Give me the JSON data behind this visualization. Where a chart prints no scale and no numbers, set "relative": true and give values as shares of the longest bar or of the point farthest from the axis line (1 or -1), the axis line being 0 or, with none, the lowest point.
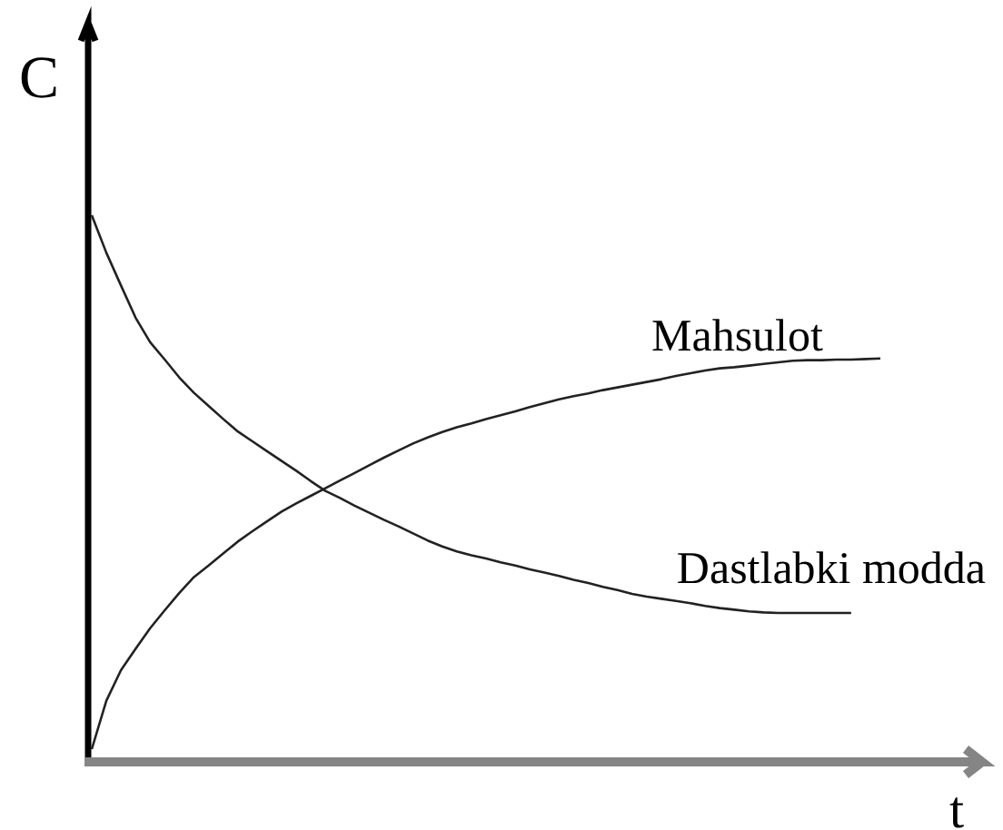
{
  "chart_data": {
    "type": "line",
    "xlabel": "t",
    "ylabel": "C",
    "relative": true,
    "categories": [
      null,
      null,
      null,
      null,
      null,
      null,
      null,
      null,
      null,
      null,
      null,
      null,
      null,
      null,
      null,
      null,
      null,
      null,
      null,
      null,
      null,
      null,
      null,
      null,
      null,
      null,
      null,
      null,
      null,
      null,
      null,
      null,
      null,
      null,
      null,
      null,
      null,
      null,
      null,
      null,
      null,
      null,
      null,
      null,
      null,
      null,
      null,
      null,
      null,
      null,
      null,
      null,
      null,
      null,
      null
    ],
    "series": [
      {
        "name": "Dastlabki modda",
        "color": "#222222",
        "values": [
          1.0,
          0.931,
          0.871,
          0.812,
          0.767,
          0.735,
          0.702,
          0.674,
          0.65,
          0.626,
          0.603,
          0.585,
          0.567,
          0.549,
          0.531,
          0.512,
          0.494,
          0.481,
          0.467,
          0.454,
          0.441,
          0.429,
          0.416,
          0.403,
          0.392,
          0.383,
          0.376,
          0.37,
          0.363,
          0.357,
          0.35,
          0.344,
          0.338,
          0.331,
          0.325,
          0.318,
          0.312,
          0.305,
          0.3,
          0.296,
          0.292,
          0.288,
          0.283,
          0.279,
          0.276,
          0.273,
          0.271,
          0.27,
          0.27,
          0.27,
          0.27,
          0.27,
          0.27,
          null,
          null
        ]
      },
      {
        "name": "Mahsulot",
        "color": "#222222",
        "values": [
          0.02,
          0.109,
          0.165,
          0.204,
          0.242,
          0.275,
          0.307,
          0.336,
          0.357,
          0.379,
          0.401,
          0.42,
          0.438,
          0.456,
          0.471,
          0.485,
          0.499,
          0.513,
          0.527,
          0.541,
          0.555,
          0.568,
          0.581,
          0.592,
          0.602,
          0.611,
          0.618,
          0.626,
          0.633,
          0.64,
          0.648,
          0.655,
          0.662,
          0.668,
          0.673,
          0.679,
          0.684,
          0.689,
          0.694,
          0.699,
          0.705,
          0.71,
          0.715,
          0.719,
          0.721,
          0.724,
          0.727,
          0.73,
          0.733,
          0.734,
          0.734,
          0.735,
          0.735,
          0.736,
          0.737
        ]
      }
    ]
  }
}
